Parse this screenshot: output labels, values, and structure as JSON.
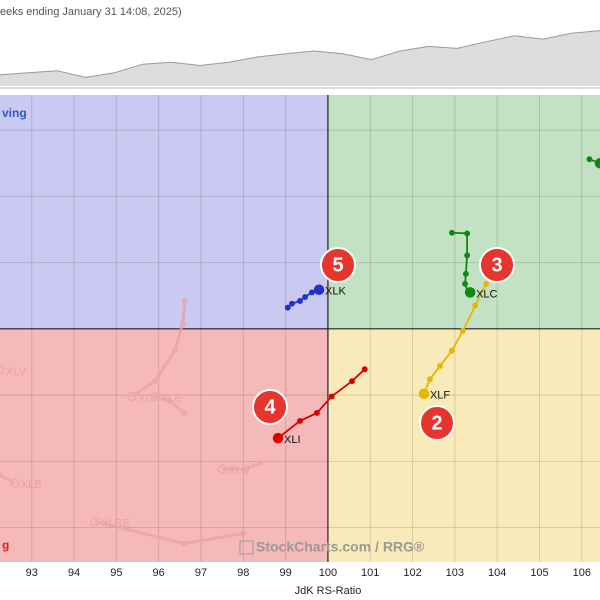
{
  "header": "eeks ending January 31 14:08, 2025)",
  "watermark": "StockCharts.com / RRG®",
  "chart_data": [
    {
      "type": "area",
      "values": [
        17,
        20,
        23,
        13,
        20,
        33,
        36,
        31,
        36,
        44,
        49,
        53,
        49,
        40,
        53,
        60,
        57,
        67,
        76,
        71,
        80,
        84
      ],
      "ylim": [
        0,
        100
      ],
      "color": "#dcdcdc",
      "line_color": "#999999"
    },
    {
      "type": "rrg",
      "x_label": "JdK RS-Ratio",
      "xlim": [
        92.25,
        106.43
      ],
      "xticks": [
        93,
        94,
        95,
        96,
        97,
        98,
        99,
        100,
        101,
        102,
        103,
        104,
        105,
        106
      ],
      "ylim": [
        96.48,
        103.53
      ],
      "yticks": [
        97,
        98,
        99,
        100,
        101,
        102,
        103
      ],
      "grid": true,
      "benchmark": 100,
      "quadrants": [
        {
          "label": "ving",
          "background": "#c9c9f2",
          "color": "#3355cc"
        },
        {
          "background": "#c3e2c3"
        },
        {
          "label": "g",
          "background": "#f6b9b9",
          "color": "#dd2222"
        },
        {
          "background": "#f9ebb9"
        }
      ],
      "badges": [
        "5",
        "3",
        "4",
        "2"
      ],
      "series": [
        {
          "name": "XLK",
          "color": "#2233cc",
          "x": [
            99.05,
            99.15,
            99.34,
            99.46,
            99.62,
            99.79
          ],
          "values": [
            100.32,
            100.38,
            100.42,
            100.48,
            100.55,
            100.59
          ]
        },
        {
          "name": "XLC",
          "color": "#118811",
          "x": [
            102.93,
            103.29,
            103.29,
            103.26,
            103.24,
            103.31,
            103.36
          ],
          "values": [
            101.45,
            101.44,
            101.11,
            100.83,
            100.68,
            100.55,
            100.55
          ]
        },
        {
          "name": "XLF",
          "color": "#e8b600",
          "x": [
            103.74,
            103.48,
            103.19,
            102.93,
            102.65,
            102.41,
            102.27
          ],
          "values": [
            100.68,
            100.35,
            99.97,
            99.67,
            99.44,
            99.24,
            99.02
          ]
        },
        {
          "name": "XLI",
          "color": "#dd0000",
          "x": [
            100.87,
            100.57,
            100.09,
            99.74,
            99.34,
            98.82
          ],
          "values": [
            99.39,
            99.21,
            98.98,
            98.73,
            98.61,
            98.35
          ]
        },
        {
          "color": "#118811",
          "x": [
            106.18,
            106.43
          ],
          "values": [
            102.56,
            102.5
          ]
        },
        {
          "name": "XLV",
          "color": "#eaa3a3",
          "x": [
            92.25
          ],
          "values": [
            99.38
          ]
        },
        {
          "name": "XLY",
          "color": "#eaa3a3",
          "x": [
            96.62,
            96.57,
            96.38,
            95.91,
            95.37
          ],
          "values": [
            100.42,
            100.08,
            99.67,
            99.21,
            98.98
          ]
        },
        {
          "name": "XLE",
          "color": "#eaa3a3",
          "x": [
            96.6,
            96.26,
            95.91
          ],
          "values": [
            98.73,
            98.91,
            98.98
          ]
        },
        {
          "name": "XLU",
          "color": "#eaa3a3",
          "x": [
            98.4,
            98.05,
            97.5
          ],
          "values": [
            97.98,
            97.88,
            97.88
          ]
        },
        {
          "name": "XLB",
          "color": "#eaa3a3",
          "x": [
            92.25,
            92.6
          ],
          "values": [
            97.79,
            97.67
          ]
        },
        {
          "name": "XLRE",
          "color": "#eaa3a3",
          "x": [
            98.0,
            96.6,
            94.5
          ],
          "values": [
            96.91,
            96.76,
            97.09
          ]
        }
      ]
    }
  ]
}
